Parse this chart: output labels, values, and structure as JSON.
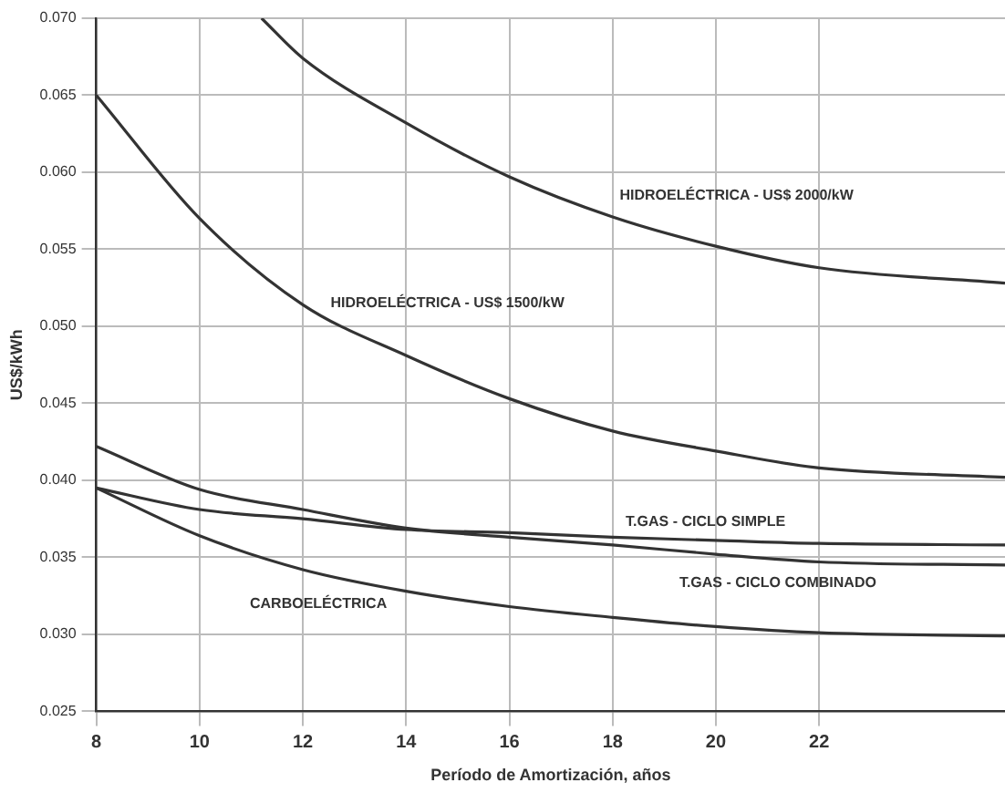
{
  "chart_data": {
    "type": "line",
    "xlabel": "Período de Amortización, años",
    "ylabel": "US$/kWh",
    "x": [
      8,
      10,
      12,
      14,
      16,
      18,
      20,
      22,
      25.6
    ],
    "xlim": [
      8,
      25.6
    ],
    "xticks": [
      8,
      10,
      12,
      14,
      16,
      18,
      20,
      22
    ],
    "ylim": [
      0.025,
      0.07
    ],
    "yticks": [
      {
        "value": 0.025,
        "label": "0.025"
      },
      {
        "value": 0.03,
        "label": "0.030"
      },
      {
        "value": 0.035,
        "label": "0.035"
      },
      {
        "value": 0.04,
        "label": "0.040"
      },
      {
        "value": 0.045,
        "label": "0.045"
      },
      {
        "value": 0.05,
        "label": "0.050"
      },
      {
        "value": 0.055,
        "label": "0.055"
      },
      {
        "value": 0.06,
        "label": "0.060"
      },
      {
        "value": 0.065,
        "label": "0.065"
      },
      {
        "value": 0.07,
        "label": "0.070"
      }
    ],
    "grid": true,
    "legend": false,
    "marker": "none",
    "line_style": "solid",
    "series": [
      {
        "name": "HIDROELÉCTRICA - US$ 2000/kW",
        "color": "#333333",
        "x": [
          11.2,
          12,
          14,
          16,
          18,
          20,
          22,
          25.6
        ],
        "values": [
          0.07,
          0.0674,
          0.0632,
          0.0597,
          0.0571,
          0.0552,
          0.0538,
          0.0528
        ]
      },
      {
        "name": "HIDROELÉCTRICA - US$ 1500/kW",
        "color": "#333333",
        "values": [
          0.065,
          0.057,
          0.0514,
          0.0481,
          0.0453,
          0.0432,
          0.0419,
          0.0408,
          0.0402
        ]
      },
      {
        "name": "T.GAS - CICLO SIMPLE",
        "color": "#333333",
        "values": [
          0.0395,
          0.0381,
          0.0375,
          0.0368,
          0.0366,
          0.0363,
          0.0361,
          0.0359,
          0.0358
        ]
      },
      {
        "name": "T.GAS - CICLO COMBINADO",
        "color": "#333333",
        "values": [
          0.0422,
          0.0394,
          0.0381,
          0.0369,
          0.0363,
          0.0358,
          0.0352,
          0.0347,
          0.0345
        ]
      },
      {
        "name": "CARBOELÉCTRICA",
        "color": "#333333",
        "values": [
          0.0395,
          0.0364,
          0.0342,
          0.0328,
          0.0318,
          0.0311,
          0.0305,
          0.0301,
          0.0299
        ]
      }
    ]
  }
}
